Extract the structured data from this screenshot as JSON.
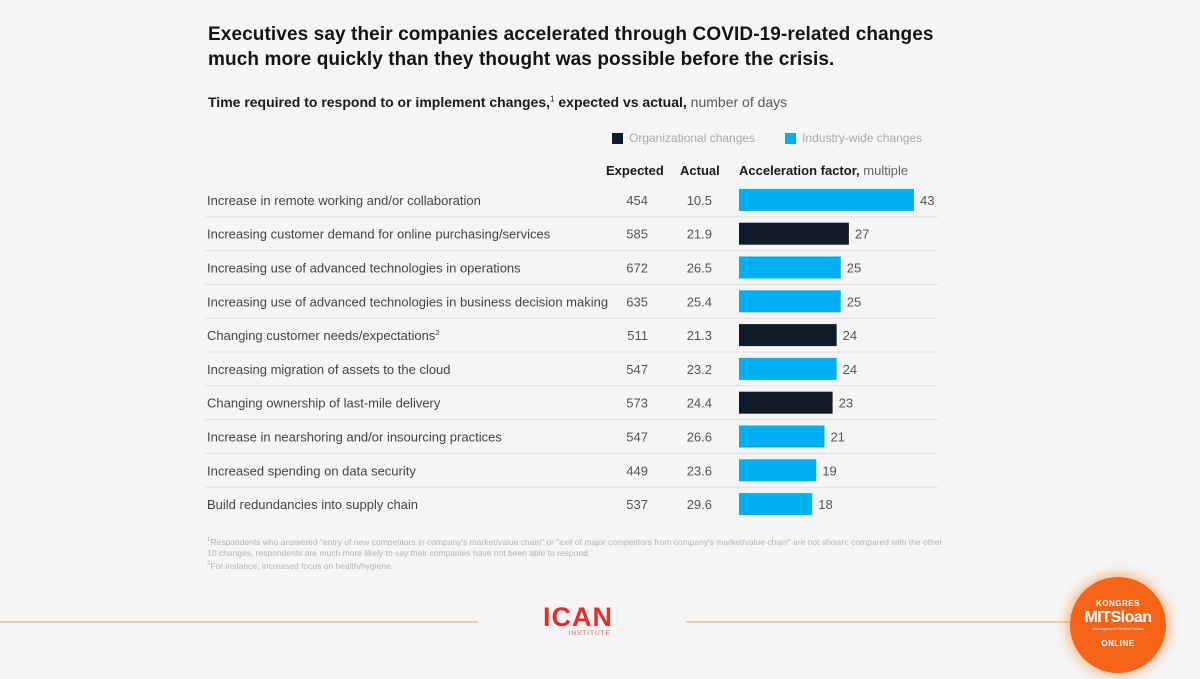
{
  "header": {
    "title": "Executives say their companies accelerated through COVID-19-related changes much more quickly than they thought was possible before the crisis.",
    "subtitle_bold": "Time required to respond to or implement changes,",
    "subtitle_sup": "1",
    "subtitle_bold2": " expected vs actual,",
    "subtitle_light": " number of days"
  },
  "legend": [
    {
      "label": "Organizational changes",
      "color": "#111a28"
    },
    {
      "label": "Industry-wide changes",
      "color": "#00b0f0"
    }
  ],
  "columns": {
    "expected": "Expected",
    "actual": "Actual",
    "factor_bold": "Acceleration factor,",
    "factor_light": " multiple"
  },
  "chart_data": {
    "type": "bar",
    "orientation": "horizontal",
    "title": "Time required to respond to or implement changes, expected vs actual, number of days",
    "xlabel": "Acceleration factor, multiple",
    "ylabel": "",
    "xlim": [
      0,
      43
    ],
    "grid": false,
    "legend_position": "top-right",
    "categories": [
      "Increase in remote working and/or collaboration",
      "Increasing customer demand for online purchasing/services",
      "Increasing use of advanced technologies in operations",
      "Increasing use of advanced technologies in business decision making",
      "Changing customer needs/expectations",
      "Increasing migration of assets to the cloud",
      "Changing ownership of last-mile delivery",
      "Increase in nearshoring and/or insourcing practices",
      "Increased spending on data security",
      "Build redundancies into supply chain"
    ],
    "category_footnotes": [
      "",
      "",
      "",
      "",
      "2",
      "",
      "",
      "",
      "",
      ""
    ],
    "expected": [
      454,
      585,
      672,
      635,
      511,
      547,
      573,
      547,
      449,
      537
    ],
    "actual": [
      "10.5",
      "21.9",
      "26.5",
      "25.4",
      "21.3",
      "23.2",
      "24.4",
      "26.6",
      "23.6",
      "29.6"
    ],
    "values": [
      43,
      27,
      25,
      25,
      24,
      24,
      23,
      21,
      19,
      18
    ],
    "types": [
      "Industry-wide changes",
      "Organizational changes",
      "Industry-wide changes",
      "Industry-wide changes",
      "Organizational changes",
      "Industry-wide changes",
      "Organizational changes",
      "Industry-wide changes",
      "Industry-wide changes",
      "Industry-wide changes"
    ]
  },
  "footnotes": {
    "note1": "Respondents who answered \"entry of new competitors in company's market/value chain\" or \"exit of major competitors from company's market/value chain\" are not shown; compared with the other 10 changes, respondents are much more likely to say their companies have not been able to respond.",
    "note2": "For instance, increased focus on health/hygiene."
  },
  "logos": {
    "ican_big": "ICAN",
    "ican_small": "INSTITUTE",
    "badge_top": "KONGRES",
    "badge_main": "MITSloan",
    "badge_sub": "Management Review Polska",
    "badge_bottom": "ONLINE"
  }
}
